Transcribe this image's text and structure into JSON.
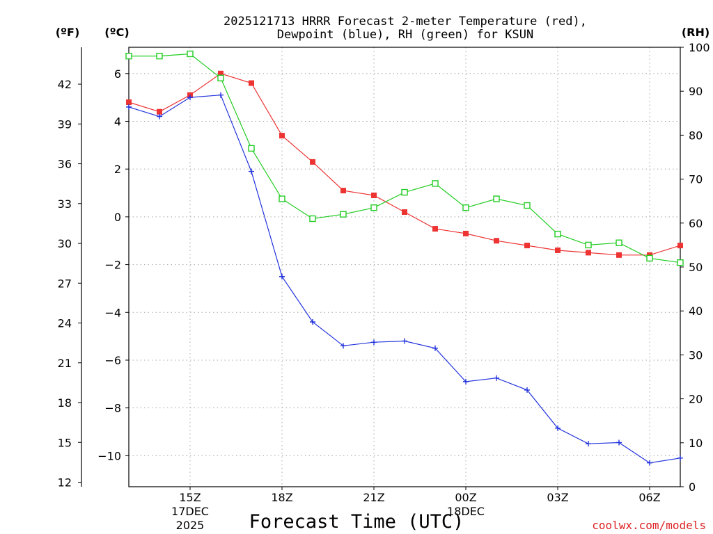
{
  "chart_data": {
    "type": "line",
    "title": "2025121713 HRRR Forecast 2-meter Temperature (red), Dewpoint (blue), RH (green) for KSUN",
    "title_lines": [
      "2025121713 HRRR Forecast 2-meter Temperature (red),",
      "Dewpoint (blue), RH (green) for KSUN"
    ],
    "xlabel": "Forecast Time (UTC)",
    "units": {
      "fahrenheit": "(ºF)",
      "celsius": "(ºC)",
      "rh": "(RH)"
    },
    "x_hours": [
      13,
      14,
      15,
      16,
      17,
      18,
      19,
      20,
      21,
      22,
      23,
      24,
      25,
      26,
      27,
      28,
      29,
      30,
      31
    ],
    "x_ticks": [
      {
        "hour": 15,
        "label": "15Z",
        "sub1": "17DEC",
        "sub2": "2025"
      },
      {
        "hour": 18,
        "label": "18Z",
        "sub1": "",
        "sub2": ""
      },
      {
        "hour": 21,
        "label": "21Z",
        "sub1": "",
        "sub2": ""
      },
      {
        "hour": 24,
        "label": "00Z",
        "sub1": "18DEC",
        "sub2": ""
      },
      {
        "hour": 27,
        "label": "03Z",
        "sub1": "",
        "sub2": ""
      },
      {
        "hour": 30,
        "label": "06Z",
        "sub1": "",
        "sub2": ""
      }
    ],
    "xlim": [
      13,
      31
    ],
    "celsius_axis": {
      "ylim": [
        -11.3,
        7.1
      ],
      "ticks": [
        "6",
        "4",
        "2",
        "0",
        "−2",
        "−4",
        "−6",
        "−8",
        "−10"
      ],
      "tick_values": [
        6,
        4,
        2,
        0,
        -2,
        -4,
        -6,
        -8,
        -10
      ]
    },
    "fahrenheit_axis": {
      "ticks": [
        "42",
        "39",
        "36",
        "33",
        "30",
        "27",
        "24",
        "21",
        "18",
        "15",
        "12"
      ],
      "tick_values": [
        42,
        39,
        36,
        33,
        30,
        27,
        24,
        21,
        18,
        15,
        12
      ]
    },
    "rh_axis": {
      "ylim": [
        0,
        100
      ],
      "ticks": [
        "100",
        "90",
        "80",
        "70",
        "60",
        "50",
        "40",
        "30",
        "20",
        "10",
        "0"
      ],
      "tick_values": [
        100,
        90,
        80,
        70,
        60,
        50,
        40,
        30,
        20,
        10,
        0
      ]
    },
    "series": [
      {
        "name": "Temperature",
        "color": "#ee3333",
        "axis": "celsius",
        "marker": "filled-square",
        "values": [
          4.8,
          4.4,
          5.1,
          6.0,
          5.6,
          3.4,
          2.3,
          1.1,
          0.9,
          0.2,
          -0.5,
          -0.7,
          -1.0,
          -1.2,
          -1.4,
          -1.5,
          -1.6,
          -1.6,
          -1.2
        ]
      },
      {
        "name": "Dewpoint",
        "color": "#2233dd",
        "axis": "celsius",
        "marker": "plus",
        "values": [
          4.6,
          4.2,
          5.0,
          5.1,
          1.9,
          -2.5,
          -4.4,
          -5.4,
          -5.25,
          -5.2,
          -5.5,
          -6.9,
          -6.75,
          -7.25,
          -8.85,
          -9.5,
          -9.45,
          -10.3,
          -10.1
        ]
      },
      {
        "name": "RH",
        "color": "#22cc22",
        "axis": "rh",
        "marker": "open-square",
        "values": [
          98,
          98,
          98.5,
          93,
          77,
          65.5,
          61,
          62,
          63.5,
          67,
          69,
          63.5,
          65.5,
          64,
          57.5,
          55,
          55.5,
          52,
          51
        ]
      }
    ]
  },
  "credit": "coolwx.com/models"
}
